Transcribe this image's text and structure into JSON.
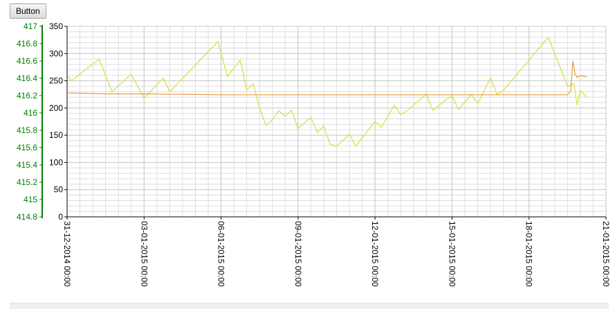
{
  "toolbar": {
    "button_label": "Button"
  },
  "colors": {
    "grid": "#c8c8c8",
    "axis": "#000000",
    "left_axis": "#008000",
    "series_yellow": "#d4e03c",
    "series_orange": "#e59a3c"
  },
  "chart_data": {
    "type": "line",
    "title": "",
    "xlabel": "",
    "ylabel": "",
    "x_ticks": [
      "31-12-2014 00:00",
      "03-01-2015 00:00",
      "06-01-2015 00:00",
      "09-01-2015 00:00",
      "12-01-2015 00:00",
      "15-01-2015 00:00",
      "18-01-2015 00:00",
      "21-01-2015 00:00"
    ],
    "xlim": [
      "31-12-2014 00:00",
      "21-01-2015 00:00"
    ],
    "y_left": {
      "ticks": [
        "417",
        "416.8",
        "416.6",
        "416.4",
        "416.2",
        "416",
        "415.8",
        "415.6",
        "415.4",
        "415.2",
        "415",
        "414.8"
      ],
      "ylim": [
        414.8,
        417
      ]
    },
    "y_right": {
      "ticks": [
        "350",
        "300",
        "250",
        "200",
        "150",
        "100",
        "50",
        "0"
      ],
      "ylim": [
        0,
        350
      ]
    },
    "grid": true,
    "legend": "none",
    "series": [
      {
        "axis": "right",
        "x": [
          "31-12-2014 01:00",
          "31-12-2014 04:00",
          "01-01-2015 06:00",
          "01-01-2015 18:00",
          "02-01-2015 12:00",
          "03-01-2015 00:00",
          "03-01-2015 18:00",
          "04-01-2015 00:00",
          "05-01-2015 21:00",
          "06-01-2015 06:00",
          "06-01-2015 18:00",
          "07-01-2015 00:00",
          "07-01-2015 06:00",
          "07-01-2015 12:00",
          "07-01-2015 18:00",
          "08-01-2015 00:00",
          "08-01-2015 06:00",
          "08-01-2015 12:00",
          "08-01-2015 18:00",
          "09-01-2015 00:00",
          "09-01-2015 12:00",
          "09-01-2015 18:00",
          "10-01-2015 00:00",
          "10-01-2015 06:00",
          "10-01-2015 12:00",
          "10-01-2015 18:00",
          "11-01-2015 00:00",
          "11-01-2015 06:00",
          "12-01-2015 00:00",
          "12-01-2015 06:00",
          "12-01-2015 18:00",
          "13-01-2015 00:00",
          "13-01-2015 06:00",
          "14-01-2015 00:00",
          "14-01-2015 06:00",
          "14-01-2015 18:00",
          "15-01-2015 00:00",
          "15-01-2015 06:00",
          "15-01-2015 18:00",
          "16-01-2015 00:00",
          "16-01-2015 12:00",
          "16-01-2015 18:00",
          "17-01-2015 00:00",
          "18-01-2015 18:00",
          "19-01-2015 12:00",
          "19-01-2015 18:00",
          "19-01-2015 21:00",
          "20-01-2015 00:00",
          "20-01-2015 06:00"
        ],
        "values": [
          258,
          250,
          290,
          230,
          262,
          218,
          255,
          230,
          322,
          258,
          288,
          233,
          245,
          200,
          168,
          178,
          195,
          185,
          196,
          162,
          183,
          155,
          167,
          133,
          130,
          140,
          152,
          130,
          175,
          165,
          205,
          188,
          195,
          226,
          195,
          215,
          222,
          197,
          225,
          208,
          255,
          225,
          232,
          330,
          240,
          245,
          205,
          232,
          220
        ]
      },
      {
        "axis": "left",
        "x": [
          "31-12-2014 01:00",
          "01-01-2015 12:00",
          "03-01-2015 00:00",
          "06-01-2015 00:00",
          "09-01-2015 00:00",
          "12-01-2015 00:00",
          "15-01-2015 00:00",
          "18-01-2015 00:00",
          "19-01-2015 12:00",
          "19-01-2015 15:00",
          "19-01-2015 17:00",
          "19-01-2015 19:00",
          "19-01-2015 21:00",
          "20-01-2015 00:00",
          "20-01-2015 06:00"
        ],
        "values": [
          416.23,
          416.22,
          416.22,
          416.21,
          416.21,
          416.21,
          416.21,
          416.21,
          416.21,
          416.25,
          416.6,
          416.45,
          416.41,
          416.43,
          416.42
        ]
      }
    ]
  }
}
